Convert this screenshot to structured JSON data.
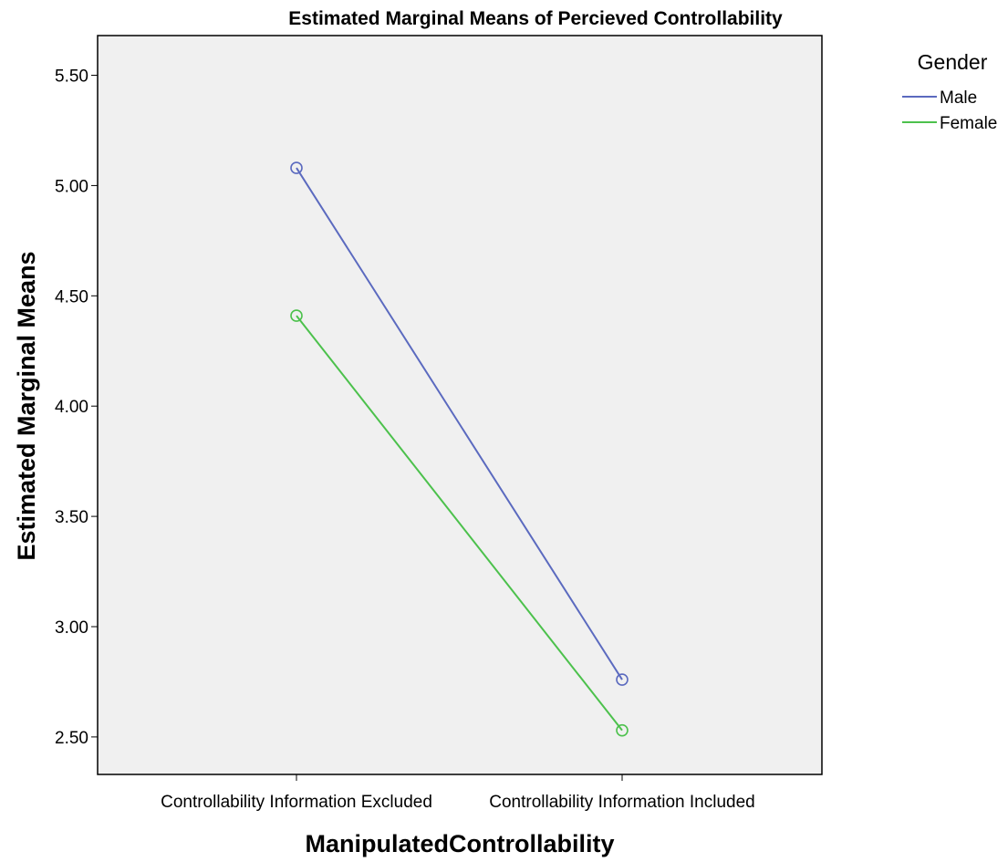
{
  "chart_data": {
    "type": "line",
    "title": "Estimated Marginal Means of Percieved Controllability",
    "xlabel": "ManipulatedControllability",
    "ylabel": "Estimated Marginal Means",
    "categories": [
      "Controllability Information Excluded",
      "Controllability Information Included"
    ],
    "ylim": [
      2.33,
      5.68
    ],
    "yticks": [
      "2.50",
      "3.00",
      "3.50",
      "4.00",
      "4.50",
      "5.00",
      "5.50"
    ],
    "grid": false,
    "markers": "open-circle",
    "legend": {
      "title": "Gender",
      "position": "top-right-outside"
    },
    "series": [
      {
        "name": "Male",
        "color": "#5b6abf",
        "values": [
          5.08,
          2.76
        ]
      },
      {
        "name": "Female",
        "color": "#4cc14c",
        "values": [
          4.41,
          2.53
        ]
      }
    ],
    "plot_background": "#f0f0f0"
  }
}
